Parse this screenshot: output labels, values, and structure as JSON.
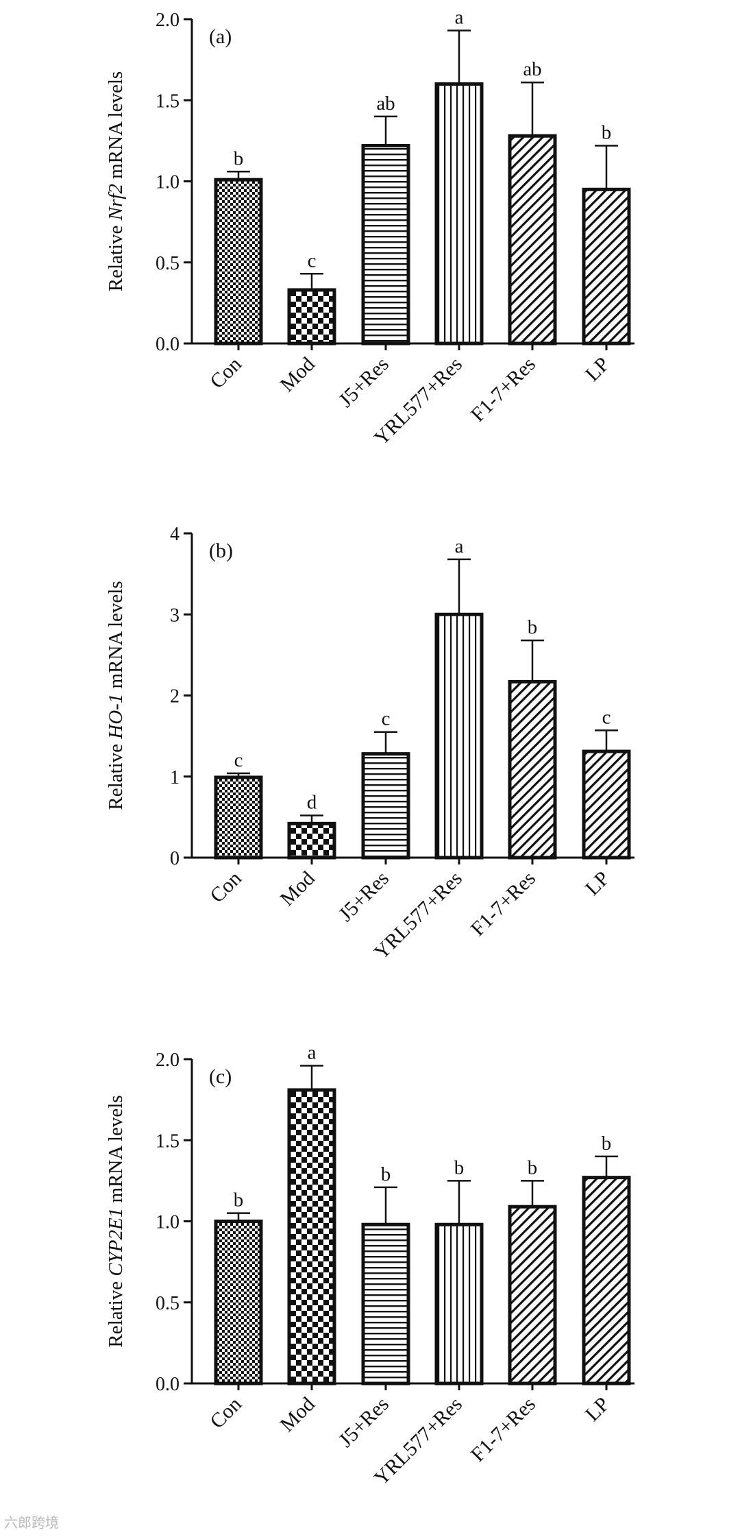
{
  "watermark": "六郎跨境",
  "colors": {
    "ink": "#111111",
    "background": "#ffffff"
  },
  "chart_data": [
    {
      "type": "bar",
      "panel_label": "(a)",
      "ylabel": {
        "prefix": "Relative ",
        "gene": "Nrf2",
        "suffix": " mRNA levels"
      },
      "ylim": [
        0,
        2.0
      ],
      "yticks": [
        "0.0",
        "0.5",
        "1.0",
        "1.5",
        "2.0"
      ],
      "grid": false,
      "categories": [
        "Con",
        "Mod",
        "J5+Res",
        "YRL577+Res",
        "F1-7+Res",
        "LP"
      ],
      "patterns": [
        "checker-fine",
        "checker-coarse",
        "horizontal-lines",
        "vertical-lines",
        "diagonal-lines",
        "diagonal-lines"
      ],
      "values": [
        1.01,
        0.33,
        1.22,
        1.6,
        1.28,
        0.95
      ],
      "errors": [
        0.05,
        0.1,
        0.18,
        0.33,
        0.33,
        0.27
      ],
      "letters": [
        "b",
        "c",
        "ab",
        "a",
        "ab",
        "b"
      ]
    },
    {
      "type": "bar",
      "panel_label": "(b)",
      "ylabel": {
        "prefix": "Relative ",
        "gene": "HO-1",
        "suffix": " mRNA levels"
      },
      "ylim": [
        0,
        4
      ],
      "yticks": [
        "0",
        "1",
        "2",
        "3",
        "4"
      ],
      "grid": false,
      "categories": [
        "Con",
        "Mod",
        "J5+Res",
        "YRL577+Res",
        "F1-7+Res",
        "LP"
      ],
      "patterns": [
        "checker-fine",
        "checker-coarse",
        "horizontal-lines",
        "vertical-lines",
        "diagonal-lines",
        "diagonal-lines"
      ],
      "values": [
        0.99,
        0.42,
        1.28,
        3.0,
        2.17,
        1.31
      ],
      "errors": [
        0.05,
        0.1,
        0.27,
        0.68,
        0.51,
        0.26
      ],
      "letters": [
        "c",
        "d",
        "c",
        "a",
        "b",
        "c"
      ]
    },
    {
      "type": "bar",
      "panel_label": "(c)",
      "ylabel": {
        "prefix": "Relative ",
        "gene": "CYP2E1",
        "suffix": " mRNA levels"
      },
      "ylim": [
        0,
        2.0
      ],
      "yticks": [
        "0.0",
        "0.5",
        "1.0",
        "1.5",
        "2.0"
      ],
      "grid": false,
      "categories": [
        "Con",
        "Mod",
        "J5+Res",
        "YRL577+Res",
        "F1-7+Res",
        "LP"
      ],
      "patterns": [
        "checker-fine",
        "checker-coarse",
        "horizontal-lines",
        "vertical-lines",
        "diagonal-lines",
        "diagonal-lines"
      ],
      "values": [
        1.0,
        1.81,
        0.98,
        0.98,
        1.09,
        1.27
      ],
      "errors": [
        0.05,
        0.15,
        0.23,
        0.27,
        0.16,
        0.13
      ],
      "letters": [
        "b",
        "a",
        "b",
        "b",
        "b",
        "b"
      ]
    }
  ]
}
